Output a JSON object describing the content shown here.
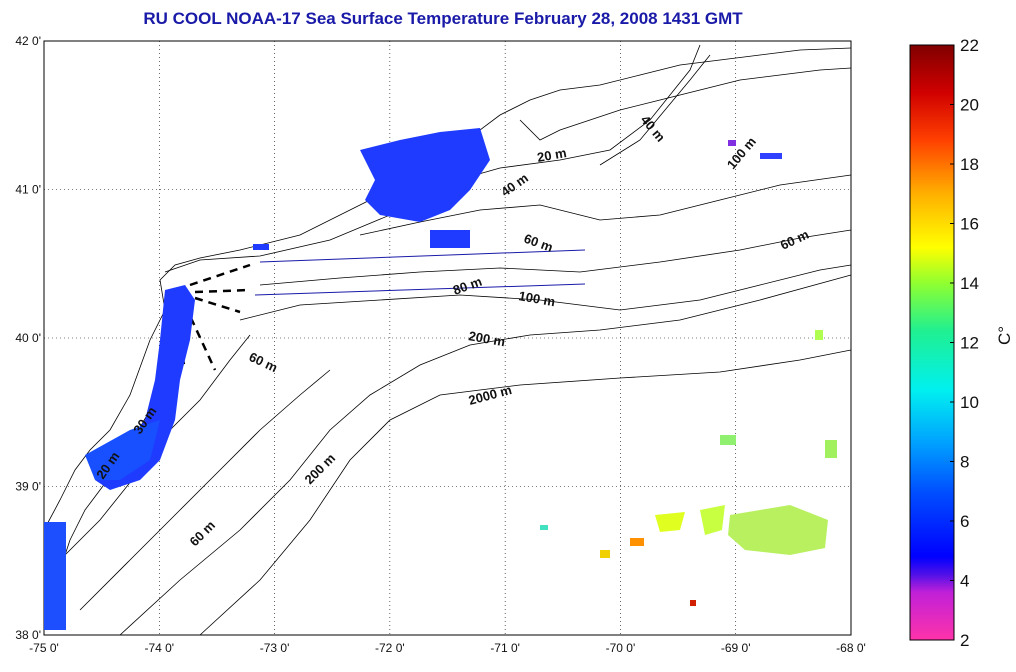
{
  "title": "RU COOL  NOAA-17 Sea Surface Temperature February 28, 2008 1431 GMT",
  "map": {
    "lon_range": [
      -75,
      -68
    ],
    "lat_range": [
      38,
      42
    ],
    "x_ticks": [
      "-75 0'",
      "-74 0'",
      "-73 0'",
      "-72 0'",
      "-71 0'",
      "-70 0'",
      "-69 0'",
      "-68 0'"
    ],
    "y_ticks": [
      "38 0'",
      "39 0'",
      "40 0'",
      "41 0'",
      "42 0'"
    ],
    "grid": "dotted",
    "contour_labels": [
      "40 m",
      "20 m",
      "40 m",
      "100 m",
      "60 m",
      "60 m",
      "80 m",
      "100 m",
      "200 m",
      "60 m",
      "2000 m",
      "200 m",
      "60 m",
      "30 m",
      "20 m"
    ]
  },
  "colorbar": {
    "ticks": [
      "22",
      "20",
      "18",
      "16",
      "14",
      "12",
      "10",
      "8",
      "6",
      "4",
      "2"
    ],
    "min": 2,
    "max": 22,
    "unit_label": "C°",
    "colors": [
      "#ff2ea8",
      "#8020e8",
      "#0000ff",
      "#0060ff",
      "#00b0ff",
      "#00f0d0",
      "#40f070",
      "#c0ff20",
      "#ffff00",
      "#ff9000",
      "#ff2000",
      "#b00000",
      "#800000"
    ]
  }
}
